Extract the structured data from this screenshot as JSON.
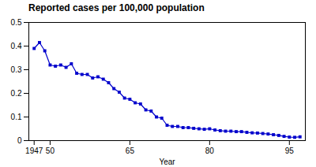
{
  "chart_data": {
    "type": "line",
    "title": "Reported cases per 100,000 population",
    "xlabel": "Year",
    "x": [
      1947,
      1948,
      1949,
      1950,
      1951,
      1952,
      1953,
      1954,
      1955,
      1956,
      1957,
      1958,
      1959,
      1960,
      1961,
      1962,
      1963,
      1964,
      1965,
      1966,
      1967,
      1968,
      1969,
      1970,
      1971,
      1972,
      1973,
      1974,
      1975,
      1976,
      1977,
      1978,
      1979,
      1980,
      1981,
      1982,
      1983,
      1984,
      1985,
      1986,
      1987,
      1988,
      1989,
      1990,
      1991,
      1992,
      1993,
      1994,
      1995,
      1996,
      1997
    ],
    "values": [
      0.39,
      0.415,
      0.38,
      0.32,
      0.315,
      0.32,
      0.31,
      0.325,
      0.285,
      0.28,
      0.28,
      0.265,
      0.27,
      0.26,
      0.245,
      0.22,
      0.205,
      0.18,
      0.175,
      0.16,
      0.155,
      0.13,
      0.125,
      0.1,
      0.095,
      0.065,
      0.06,
      0.06,
      0.055,
      0.055,
      0.052,
      0.05,
      0.048,
      0.05,
      0.045,
      0.042,
      0.04,
      0.04,
      0.038,
      0.038,
      0.035,
      0.033,
      0.032,
      0.03,
      0.028,
      0.025,
      0.022,
      0.018,
      0.015,
      0.014,
      0.016
    ],
    "color": "#0000cc",
    "marker": "square",
    "xlim": [
      1946,
      1998
    ],
    "xticks": [
      1947,
      {
        "value": 1950,
        "label": "50"
      },
      {
        "value": 1965,
        "label": "65"
      },
      {
        "value": 1980,
        "label": "80"
      },
      {
        "value": 1995,
        "label": "95"
      }
    ],
    "ylim": [
      0,
      0.5
    ],
    "yticks": [
      0,
      0.1,
      0.2,
      0.3,
      0.4,
      0.5
    ],
    "grid": false
  }
}
